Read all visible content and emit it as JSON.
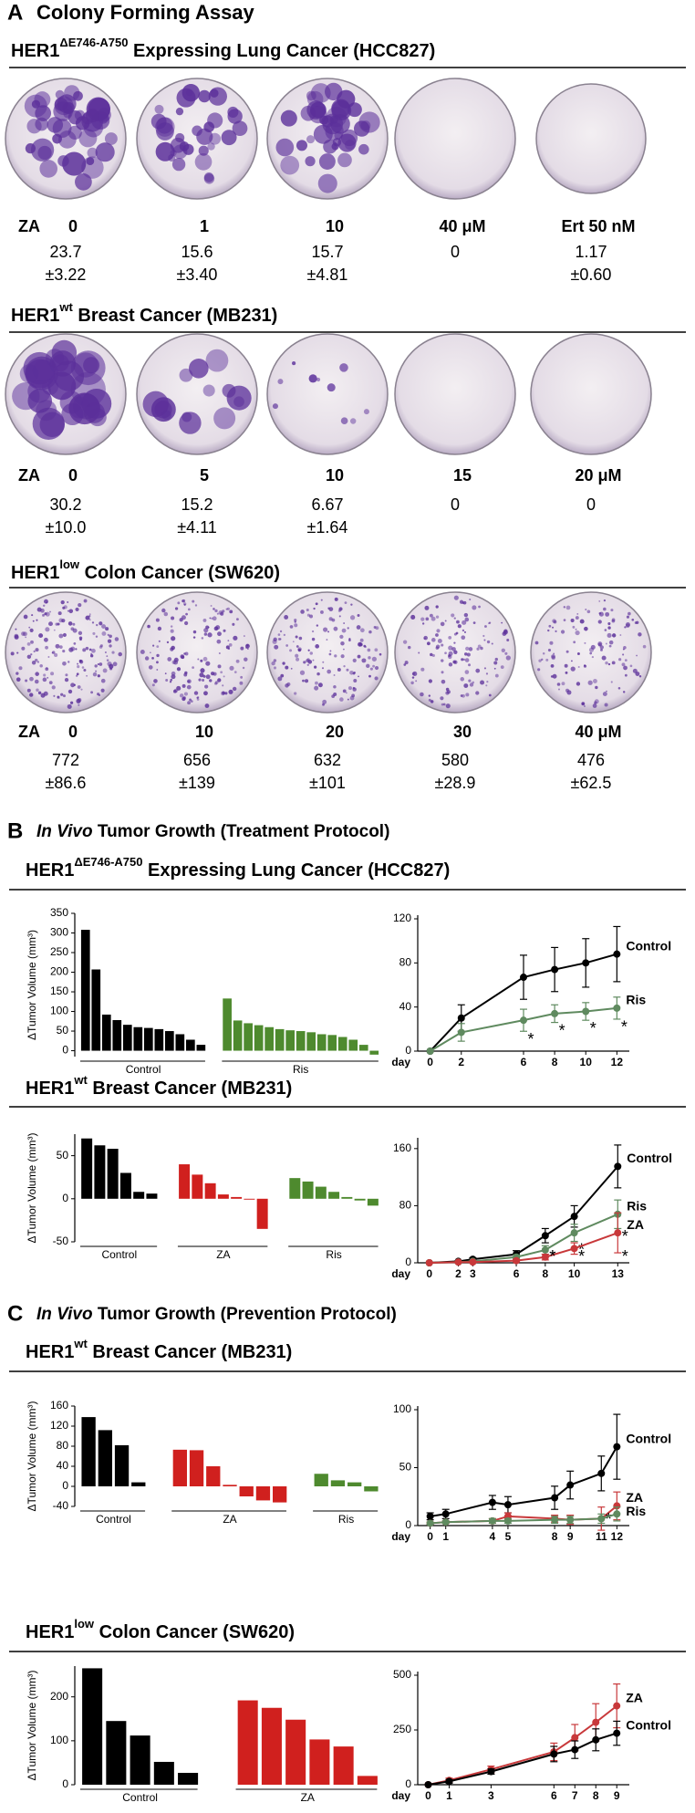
{
  "panel_a": {
    "label": "A",
    "title": "Colony Forming Assay",
    "rows": [
      {
        "heading": {
          "name": "HER1",
          "sup": "ΔE746-A750",
          "rest": " Expressing Lung Cancer (HCC827)"
        },
        "drug": "ZA",
        "doses": [
          "0",
          "1",
          "10",
          "40 μM",
          "Ert 50 nM"
        ],
        "counts": [
          [
            "23.7",
            "±3.22"
          ],
          [
            "15.6",
            "±3.40"
          ],
          [
            "15.7",
            "±4.81"
          ],
          [
            "0"
          ],
          [
            "1.17",
            "±0.60"
          ]
        ]
      },
      {
        "heading": {
          "name": "HER1",
          "sup": "wt",
          "rest": " Breast Cancer (MB231)"
        },
        "drug": "ZA",
        "doses": [
          "0",
          "5",
          "10",
          "15",
          "20 μM"
        ],
        "counts": [
          [
            "30.2",
            "±10.0"
          ],
          [
            "15.2",
            "±4.11"
          ],
          [
            "6.67",
            "±1.64"
          ],
          [
            "0"
          ],
          [
            "0"
          ]
        ]
      },
      {
        "heading": {
          "name": "HER1",
          "sup": "low",
          "rest": " Colon Cancer (SW620)"
        },
        "drug": "ZA",
        "doses": [
          "0",
          "10",
          "20",
          "30",
          "40 μM"
        ],
        "counts": [
          [
            "772",
            "±86.6"
          ],
          [
            "656",
            "±139"
          ],
          [
            "632",
            "±101"
          ],
          [
            "580",
            "±28.9"
          ],
          [
            "476",
            "±62.5"
          ]
        ]
      }
    ]
  },
  "panel_b": {
    "label": "B",
    "title_italic": "In Vivo",
    "title": " Tumor Growth (Treatment Protocol)",
    "sections": [
      {
        "name": "HER1",
        "sup": "ΔE746-A750",
        "rest": " Expressing Lung Cancer (HCC827)"
      },
      {
        "name": "HER1",
        "sup": "wt",
        "rest": " Breast Cancer (MB231)"
      }
    ]
  },
  "panel_c": {
    "label": "C",
    "title_italic": "In Vivo",
    "title": " Tumor Growth (Prevention Protocol)",
    "sections": [
      {
        "name": "HER1",
        "sup": "wt",
        "rest": " Breast Cancer (MB231)"
      },
      {
        "name": "HER1",
        "sup": "low",
        "rest": " Colon Cancer (SW620)"
      }
    ]
  },
  "chart_data": [
    {
      "type": "bar",
      "ylabel": "ΔTumor Volume (mm³)",
      "ylim": [
        -15,
        350
      ],
      "yticks": [
        0,
        50,
        100,
        150,
        200,
        250,
        300,
        350
      ],
      "series": [
        {
          "name": "Control",
          "color": "#000000",
          "values": [
            308,
            207,
            92,
            78,
            66,
            60,
            58,
            55,
            50,
            42,
            28,
            15
          ]
        },
        {
          "name": "Ris",
          "color": "#4e8a2e",
          "values": [
            133,
            77,
            70,
            65,
            60,
            55,
            52,
            50,
            47,
            42,
            40,
            35,
            28,
            15,
            -10
          ]
        }
      ]
    },
    {
      "type": "line",
      "xlabel": "day",
      "x": [
        0,
        2,
        6,
        8,
        10,
        12
      ],
      "xlim": [
        -0.8,
        12.8
      ],
      "xticks": [
        0,
        2,
        6,
        8,
        10,
        12
      ],
      "ylim": [
        0,
        120
      ],
      "yticks": [
        0,
        40,
        80,
        120
      ],
      "sig_label": "*",
      "series": [
        {
          "name": "Control",
          "color": "#000000",
          "values": [
            0,
            30,
            67,
            74,
            80,
            88
          ],
          "errors": [
            0,
            12,
            20,
            20,
            22,
            25
          ]
        },
        {
          "name": "Ris",
          "color": "#5f8a5f",
          "values": [
            0,
            17,
            28,
            34,
            36,
            39
          ],
          "errors": [
            0,
            8,
            10,
            8,
            8,
            10
          ],
          "sig": [
            6,
            8,
            10,
            12
          ]
        }
      ]
    },
    {
      "type": "bar",
      "ylabel": "ΔTumor Volume (mm³)",
      "ylim": [
        -50,
        75
      ],
      "yticks": [
        -50,
        0,
        50
      ],
      "series": [
        {
          "name": "Control",
          "color": "#000000",
          "values": [
            70,
            62,
            58,
            30,
            8,
            6
          ]
        },
        {
          "name": "ZA",
          "color": "#d0201e",
          "values": [
            40,
            28,
            18,
            5,
            2,
            -1,
            -35
          ]
        },
        {
          "name": "Ris",
          "color": "#4e8a2e",
          "values": [
            24,
            20,
            14,
            8,
            2,
            -2,
            -8
          ]
        }
      ]
    },
    {
      "type": "line",
      "xlabel": "day",
      "x": [
        0,
        2,
        3,
        6,
        8,
        10,
        13
      ],
      "xlim": [
        -0.8,
        13.8
      ],
      "xticks": [
        0,
        2,
        3,
        6,
        8,
        10,
        13
      ],
      "ylim": [
        0,
        170
      ],
      "yticks": [
        0,
        80,
        160
      ],
      "sig_label": "*",
      "series": [
        {
          "name": "Control",
          "color": "#000000",
          "values": [
            0,
            2,
            5,
            12,
            38,
            65,
            135
          ],
          "errors": [
            0,
            1,
            2,
            5,
            10,
            15,
            30
          ]
        },
        {
          "name": "Ris",
          "color": "#5f8a5f",
          "values": [
            0,
            1,
            2,
            8,
            18,
            42,
            68
          ],
          "errors": [
            0,
            1,
            1,
            3,
            6,
            12,
            20
          ],
          "sig": [
            8,
            10,
            13
          ]
        },
        {
          "name": "ZA",
          "color": "#c8383a",
          "values": [
            0,
            1,
            1,
            3,
            8,
            20,
            42
          ],
          "errors": [
            0,
            0,
            1,
            2,
            4,
            8,
            28
          ],
          "sig": [
            8,
            10,
            13
          ]
        }
      ]
    },
    {
      "type": "bar",
      "ylabel": "ΔTumor Volume (mm³)",
      "ylim": [
        -40,
        160
      ],
      "yticks": [
        -40,
        0,
        40,
        80,
        120,
        160
      ],
      "series": [
        {
          "name": "Control",
          "color": "#000000",
          "values": [
            138,
            112,
            82,
            8
          ]
        },
        {
          "name": "ZA",
          "color": "#d0201e",
          "values": [
            73,
            72,
            40,
            3,
            -20,
            -28,
            -32
          ]
        },
        {
          "name": "Ris",
          "color": "#4e8a2e",
          "values": [
            25,
            12,
            8,
            -10
          ]
        }
      ]
    },
    {
      "type": "line",
      "xlabel": "day",
      "x": [
        0,
        1,
        4,
        5,
        8,
        9,
        11,
        12
      ],
      "xlim": [
        -0.8,
        12.8
      ],
      "xticks": [
        0,
        1,
        4,
        5,
        8,
        9,
        11,
        12
      ],
      "ylim": [
        0,
        100
      ],
      "yticks": [
        0,
        50,
        100
      ],
      "sig_label": "*",
      "series": [
        {
          "name": "Control",
          "color": "#000000",
          "values": [
            8,
            10,
            20,
            18,
            24,
            35,
            45,
            68
          ],
          "errors": [
            3,
            4,
            6,
            7,
            10,
            12,
            15,
            28
          ]
        },
        {
          "name": "ZA",
          "color": "#c8383a",
          "values": [
            2,
            3,
            4,
            8,
            6,
            5,
            6,
            17
          ],
          "errors": [
            1,
            1,
            2,
            3,
            3,
            4,
            10,
            12
          ],
          "sig": [
            11
          ]
        },
        {
          "name": "Ris",
          "color": "#5f8a5f",
          "values": [
            2,
            3,
            4,
            4,
            5,
            5,
            6,
            10
          ],
          "errors": [
            1,
            1,
            2,
            2,
            3,
            3,
            4,
            6
          ]
        }
      ]
    },
    {
      "type": "bar",
      "ylabel": "ΔTumor Volume (mm³)",
      "ylim": [
        0,
        270
      ],
      "yticks": [
        0,
        100,
        200
      ],
      "series": [
        {
          "name": "Control",
          "color": "#000000",
          "values": [
            265,
            145,
            112,
            52,
            27
          ]
        },
        {
          "name": "ZA",
          "color": "#d0201e",
          "values": [
            192,
            175,
            148,
            103,
            87,
            20
          ]
        }
      ]
    },
    {
      "type": "line",
      "xlabel": "day",
      "x": [
        0,
        1,
        3,
        6,
        7,
        8,
        9
      ],
      "xlim": [
        -0.5,
        9.6
      ],
      "xticks": [
        0,
        1,
        3,
        6,
        7,
        8,
        9
      ],
      "ylim": [
        0,
        500
      ],
      "yticks": [
        0,
        250,
        500
      ],
      "sig_label": "*",
      "series": [
        {
          "name": "ZA",
          "color": "#c8383a",
          "values": [
            0,
            20,
            70,
            150,
            215,
            285,
            360
          ],
          "errors": [
            0,
            10,
            15,
            40,
            60,
            85,
            100
          ]
        },
        {
          "name": "Control",
          "color": "#000000",
          "values": [
            0,
            15,
            60,
            140,
            160,
            205,
            235
          ],
          "errors": [
            0,
            8,
            12,
            35,
            40,
            50,
            55
          ]
        }
      ]
    }
  ]
}
